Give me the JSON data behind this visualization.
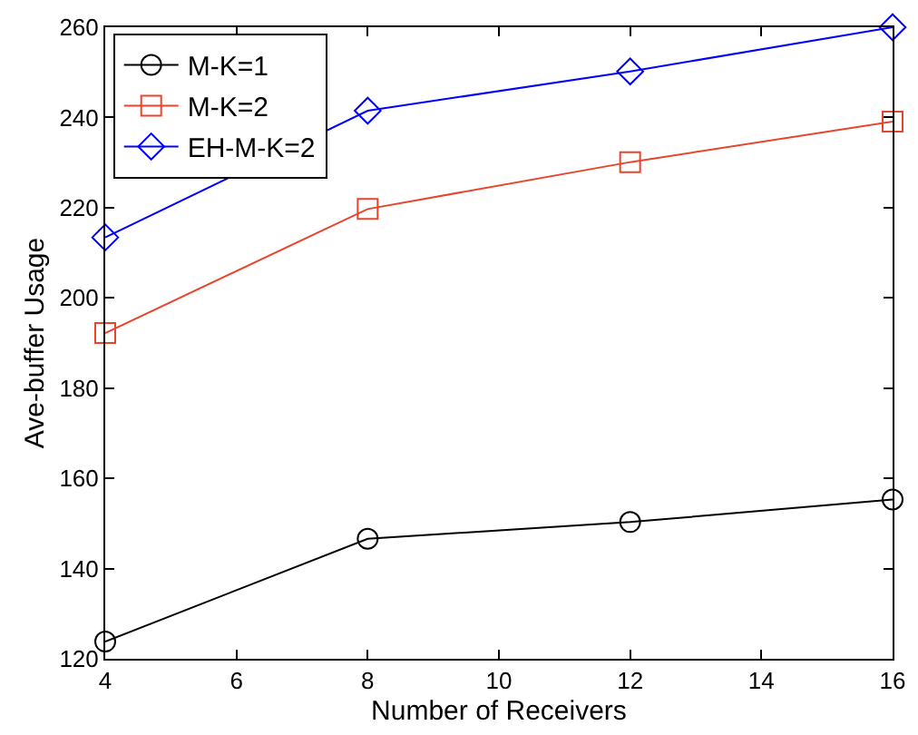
{
  "chart_data": {
    "type": "line",
    "xlabel": "Number of Receivers",
    "ylabel": "Ave-buffer Usage",
    "x": [
      4,
      8,
      12,
      16
    ],
    "series": [
      {
        "name": "M-K=1",
        "color": "#000000",
        "marker": "circle",
        "values": [
          123.8,
          146.6,
          150.3,
          155.3
        ]
      },
      {
        "name": "M-K=2",
        "color": "#e8452c",
        "marker": "square",
        "values": [
          192.2,
          219.7,
          230.1,
          239.1
        ]
      },
      {
        "name": "EH-M-K=2",
        "color": "#0000ff",
        "marker": "diamond",
        "values": [
          213.4,
          241.5,
          250.2,
          260
        ]
      }
    ],
    "xlim": [
      4,
      16
    ],
    "xticks": [
      4,
      6,
      8,
      10,
      12,
      14,
      16
    ],
    "ylim": [
      120,
      260
    ],
    "yticks": [
      120,
      140,
      160,
      180,
      200,
      220,
      240,
      260
    ],
    "grid": false,
    "legend": "top left",
    "line_style": "solid"
  }
}
